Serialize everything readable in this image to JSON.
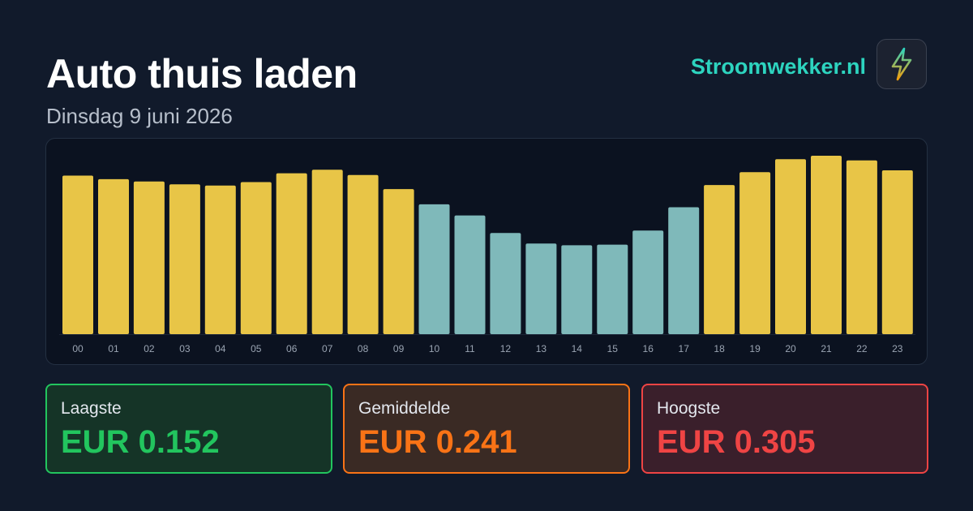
{
  "header": {
    "title": "Auto thuis laden",
    "subtitle": "Dinsdag 9 juni 2026",
    "brand": "Stroomwekker.nl",
    "logo_icon": "lightning-bolt-icon"
  },
  "chart_data": {
    "type": "bar",
    "categories": [
      "00",
      "01",
      "02",
      "03",
      "04",
      "05",
      "06",
      "07",
      "08",
      "09",
      "10",
      "11",
      "12",
      "13",
      "14",
      "15",
      "16",
      "17",
      "18",
      "19",
      "20",
      "21",
      "22",
      "23"
    ],
    "values": [
      0.271,
      0.265,
      0.261,
      0.256,
      0.254,
      0.26,
      0.275,
      0.281,
      0.272,
      0.248,
      0.222,
      0.203,
      0.173,
      0.155,
      0.152,
      0.153,
      0.177,
      0.217,
      0.255,
      0.277,
      0.299,
      0.305,
      0.297,
      0.28
    ],
    "cheap_hours": [
      "10",
      "11",
      "12",
      "13",
      "14",
      "15",
      "16",
      "17"
    ],
    "ylim": [
      0,
      0.305
    ],
    "grid": false,
    "colors": {
      "normal": "#e8c547",
      "cheap": "#7fb9ba"
    }
  },
  "stats": {
    "low": {
      "label": "Laagste",
      "value": "EUR 0.152"
    },
    "avg": {
      "label": "Gemiddelde",
      "value": "EUR 0.241"
    },
    "high": {
      "label": "Hoogste",
      "value": "EUR 0.305"
    }
  },
  "colors": {
    "background": "#111a2b",
    "accent": "#2dd4bf",
    "low": "#22c55e",
    "avg": "#f97316",
    "high": "#ef4444"
  }
}
